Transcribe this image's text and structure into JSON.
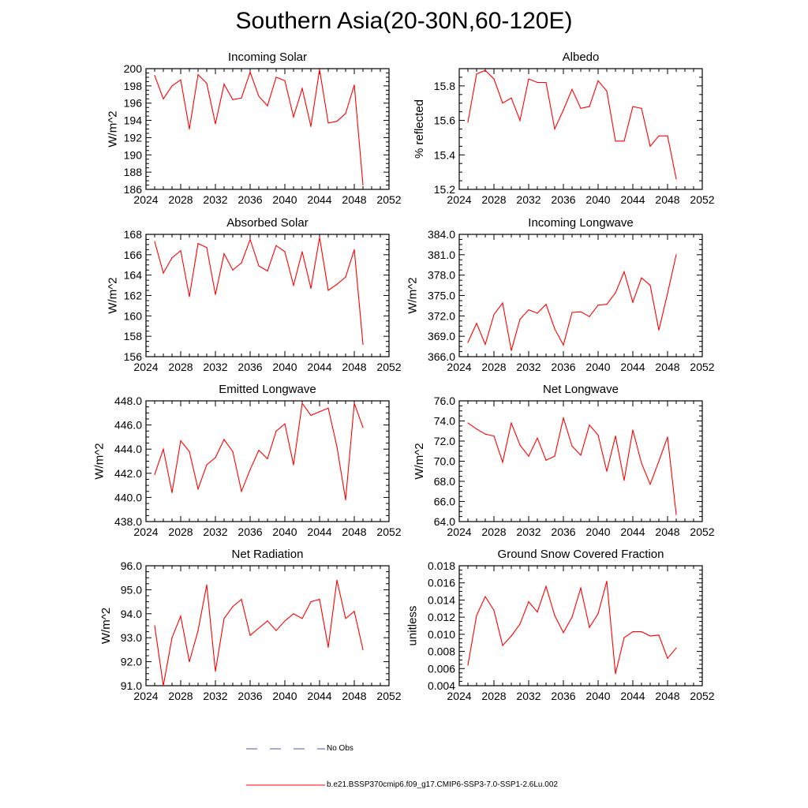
{
  "title": "Southern Asia(20-30N,60-120E)",
  "legend": {
    "no_obs_label": "No Obs",
    "no_obs_color": "#4a5aa8",
    "model_label": "b.e21.BSSP370cmip6.f09_g17.CMIP6-SSP3-7.0-SSP1-2.6Lu.002",
    "model_color": "#ff0000"
  },
  "chart_data": [
    {
      "type": "line",
      "title": "Incoming Solar",
      "ylabel": "W/m^2",
      "xlim": [
        2024,
        2052
      ],
      "xticks": [
        2024,
        2028,
        2032,
        2036,
        2040,
        2044,
        2048,
        2052
      ],
      "ylim": [
        186,
        200
      ],
      "yticks": [
        "186",
        "188",
        "190",
        "192",
        "194",
        "196",
        "198",
        "200"
      ],
      "x": [
        2025,
        2026,
        2027,
        2028,
        2029,
        2030,
        2031,
        2032,
        2033,
        2034,
        2035,
        2036,
        2037,
        2038,
        2039,
        2040,
        2041,
        2042,
        2043,
        2044,
        2045,
        2046,
        2047,
        2048,
        2049
      ],
      "values": [
        199.2,
        196.5,
        198.0,
        198.7,
        193.0,
        199.3,
        198.3,
        193.6,
        198.2,
        196.4,
        196.6,
        199.6,
        196.8,
        195.7,
        199.0,
        198.6,
        194.4,
        197.7,
        193.3,
        199.9,
        193.7,
        193.9,
        194.8,
        198.1,
        186.5
      ]
    },
    {
      "type": "line",
      "title": "Albedo",
      "ylabel": "% reflected",
      "xlim": [
        2024,
        2052
      ],
      "xticks": [
        2024,
        2028,
        2032,
        2036,
        2040,
        2044,
        2048,
        2052
      ],
      "ylim": [
        15.2,
        15.9
      ],
      "yticks": [
        "15.2",
        "15.4",
        "15.6",
        "15.8"
      ],
      "x": [
        2025,
        2026,
        2027,
        2028,
        2029,
        2030,
        2031,
        2032,
        2033,
        2034,
        2035,
        2036,
        2037,
        2038,
        2039,
        2040,
        2041,
        2042,
        2043,
        2044,
        2045,
        2046,
        2047,
        2048,
        2049
      ],
      "values": [
        15.59,
        15.87,
        15.89,
        15.84,
        15.7,
        15.73,
        15.6,
        15.84,
        15.82,
        15.82,
        15.55,
        15.66,
        15.78,
        15.67,
        15.68,
        15.83,
        15.77,
        15.48,
        15.48,
        15.68,
        15.67,
        15.45,
        15.51,
        15.51,
        15.26
      ]
    },
    {
      "type": "line",
      "title": "Absorbed Solar",
      "ylabel": "W/m^2",
      "xlim": [
        2024,
        2052
      ],
      "xticks": [
        2024,
        2028,
        2032,
        2036,
        2040,
        2044,
        2048,
        2052
      ],
      "ylim": [
        156,
        168
      ],
      "yticks": [
        "156",
        "158",
        "160",
        "162",
        "164",
        "166",
        "168"
      ],
      "x": [
        2025,
        2026,
        2027,
        2028,
        2029,
        2030,
        2031,
        2032,
        2033,
        2034,
        2035,
        2036,
        2037,
        2038,
        2039,
        2040,
        2041,
        2042,
        2043,
        2044,
        2045,
        2046,
        2047,
        2048,
        2049
      ],
      "values": [
        167.3,
        164.2,
        165.7,
        166.4,
        161.9,
        167.1,
        166.7,
        162.1,
        166.1,
        164.5,
        165.2,
        167.5,
        164.9,
        164.4,
        166.9,
        166.3,
        163.0,
        166.3,
        162.7,
        167.7,
        162.5,
        163.1,
        163.8,
        166.5,
        157.2
      ]
    },
    {
      "type": "line",
      "title": "Incoming Longwave",
      "ylabel": "W/m^2",
      "xlim": [
        2024,
        2052
      ],
      "xticks": [
        2024,
        2028,
        2032,
        2036,
        2040,
        2044,
        2048,
        2052
      ],
      "ylim": [
        366.0,
        384.0
      ],
      "yticks": [
        "366.0",
        "369.0",
        "372.0",
        "375.0",
        "378.0",
        "381.0",
        "384.0"
      ],
      "x": [
        2025,
        2026,
        2027,
        2028,
        2029,
        2030,
        2031,
        2032,
        2033,
        2034,
        2035,
        2036,
        2037,
        2038,
        2039,
        2040,
        2041,
        2042,
        2043,
        2044,
        2045,
        2046,
        2047,
        2048,
        2049
      ],
      "values": [
        368.1,
        370.9,
        367.8,
        372.2,
        373.9,
        366.9,
        371.5,
        372.9,
        372.4,
        373.7,
        370.1,
        367.7,
        372.5,
        372.6,
        371.9,
        373.6,
        373.7,
        375.4,
        378.5,
        374.0,
        377.6,
        376.5,
        369.9,
        375.3,
        381.0
      ]
    },
    {
      "type": "line",
      "title": "Emitted Longwave",
      "ylabel": "W/m^2",
      "xlim": [
        2024,
        2052
      ],
      "xticks": [
        2024,
        2028,
        2032,
        2036,
        2040,
        2044,
        2048,
        2052
      ],
      "ylim": [
        438.0,
        448.0
      ],
      "yticks": [
        "438.0",
        "440.0",
        "442.0",
        "444.0",
        "446.0",
        "448.0"
      ],
      "x": [
        2025,
        2026,
        2027,
        2028,
        2029,
        2030,
        2031,
        2032,
        2033,
        2034,
        2035,
        2036,
        2037,
        2038,
        2039,
        2040,
        2041,
        2042,
        2043,
        2044,
        2045,
        2046,
        2047,
        2048,
        2049
      ],
      "values": [
        441.9,
        444.0,
        440.4,
        444.7,
        443.8,
        440.7,
        442.7,
        443.3,
        444.8,
        443.8,
        440.5,
        442.3,
        443.9,
        443.2,
        445.5,
        446.1,
        442.7,
        447.8,
        446.8,
        447.1,
        447.4,
        444.2,
        439.8,
        447.8,
        445.8
      ]
    },
    {
      "type": "line",
      "title": "Net Longwave",
      "ylabel": "W/m^2",
      "xlim": [
        2024,
        2052
      ],
      "xticks": [
        2024,
        2028,
        2032,
        2036,
        2040,
        2044,
        2048,
        2052
      ],
      "ylim": [
        64.0,
        76.0
      ],
      "yticks": [
        "64.0",
        "66.0",
        "68.0",
        "70.0",
        "72.0",
        "74.0",
        "76.0"
      ],
      "x": [
        2025,
        2026,
        2027,
        2028,
        2029,
        2030,
        2031,
        2032,
        2033,
        2034,
        2035,
        2036,
        2037,
        2038,
        2039,
        2040,
        2041,
        2042,
        2043,
        2044,
        2045,
        2046,
        2047,
        2048,
        2049
      ],
      "values": [
        73.8,
        73.2,
        72.7,
        72.5,
        69.9,
        73.8,
        71.6,
        70.5,
        72.3,
        70.1,
        70.5,
        74.3,
        71.5,
        70.6,
        73.6,
        72.6,
        69.0,
        72.5,
        68.1,
        73.1,
        69.8,
        67.7,
        70.0,
        72.4,
        64.7
      ]
    },
    {
      "type": "line",
      "title": "Net Radiation",
      "ylabel": "W/m^2",
      "xlim": [
        2024,
        2052
      ],
      "xticks": [
        2024,
        2028,
        2032,
        2036,
        2040,
        2044,
        2048,
        2052
      ],
      "ylim": [
        91.0,
        96.0
      ],
      "yticks": [
        "91.0",
        "92.0",
        "93.0",
        "94.0",
        "95.0",
        "96.0"
      ],
      "x": [
        2025,
        2026,
        2027,
        2028,
        2029,
        2030,
        2031,
        2032,
        2033,
        2034,
        2035,
        2036,
        2037,
        2038,
        2039,
        2040,
        2041,
        2042,
        2043,
        2044,
        2045,
        2046,
        2047,
        2048,
        2049
      ],
      "values": [
        93.5,
        91.0,
        93.0,
        93.9,
        92.0,
        93.3,
        95.2,
        91.6,
        93.8,
        94.3,
        94.6,
        93.1,
        93.4,
        93.7,
        93.3,
        93.7,
        94.0,
        93.8,
        94.5,
        94.6,
        92.6,
        95.4,
        93.8,
        94.1,
        92.5
      ]
    },
    {
      "type": "line",
      "title": "Ground Snow Covered Fraction",
      "ylabel": "unitless",
      "xlim": [
        2024,
        2052
      ],
      "xticks": [
        2024,
        2028,
        2032,
        2036,
        2040,
        2044,
        2048,
        2052
      ],
      "ylim": [
        0.004,
        0.018
      ],
      "yticks": [
        "0.004",
        "0.006",
        "0.008",
        "0.010",
        "0.012",
        "0.014",
        "0.016",
        "0.018"
      ],
      "x": [
        2025,
        2026,
        2027,
        2028,
        2029,
        2030,
        2031,
        2032,
        2033,
        2034,
        2035,
        2036,
        2037,
        2038,
        2039,
        2040,
        2041,
        2042,
        2043,
        2044,
        2045,
        2046,
        2047,
        2048,
        2049
      ],
      "values": [
        0.0064,
        0.0122,
        0.0144,
        0.0128,
        0.0087,
        0.0098,
        0.0112,
        0.0138,
        0.0126,
        0.0156,
        0.0122,
        0.0102,
        0.012,
        0.0154,
        0.0108,
        0.0124,
        0.0162,
        0.0054,
        0.0096,
        0.0103,
        0.0103,
        0.0098,
        0.0099,
        0.0072,
        0.0084
      ]
    }
  ]
}
